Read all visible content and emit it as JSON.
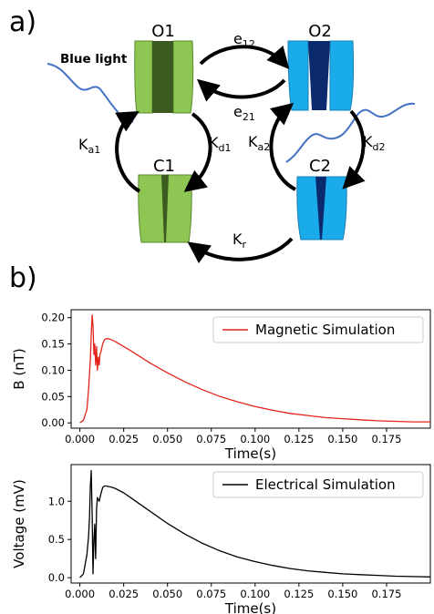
{
  "panel_a": {
    "label": "a)",
    "light_label": "Blue light",
    "states": {
      "o1": "O1",
      "o2": "O2",
      "c1": "C1",
      "c2": "C2"
    },
    "rates": {
      "e12": {
        "main": "e",
        "sub": "12"
      },
      "e21": {
        "main": "e",
        "sub": "21"
      },
      "ka1": {
        "main": "K",
        "sub": "a1"
      },
      "kd1": {
        "main": "K",
        "sub": "d1"
      },
      "ka2": {
        "main": "K",
        "sub": "a2"
      },
      "kd2": {
        "main": "K",
        "sub": "d2"
      },
      "kr": {
        "main": "K",
        "sub": "r"
      }
    },
    "colors": {
      "green_light": "#8dc653",
      "green_dark": "#3a5a1f",
      "blue_light": "#1aabea",
      "blue_dark": "#0b2a6e",
      "light_ray": "#4472c4"
    }
  },
  "panel_b": {
    "label": "b)"
  },
  "chart_data": [
    {
      "type": "line",
      "xlabel": "Time(s)",
      "ylabel": "B (nT)",
      "xlim": [
        -0.005,
        0.2
      ],
      "ylim": [
        -0.01,
        0.215
      ],
      "xticks": [
        "0.000",
        "0.025",
        "0.050",
        "0.075",
        "0.100",
        "0.125",
        "0.150",
        "0.175"
      ],
      "yticks": [
        "0.00",
        "0.05",
        "0.10",
        "0.15",
        "0.20"
      ],
      "legend_position": "top-right",
      "series": [
        {
          "name": "Magnetic Simulation",
          "color": "#e3241b",
          "x": [
            0.0,
            0.002,
            0.004,
            0.005,
            0.006,
            0.0065,
            0.007,
            0.0075,
            0.008,
            0.0085,
            0.009,
            0.0095,
            0.01,
            0.0105,
            0.011,
            0.0115,
            0.012,
            0.013,
            0.014,
            0.015,
            0.016,
            0.018,
            0.02,
            0.025,
            0.03,
            0.04,
            0.05,
            0.06,
            0.07,
            0.08,
            0.09,
            0.1,
            0.11,
            0.12,
            0.13,
            0.14,
            0.15,
            0.16,
            0.17,
            0.18,
            0.19,
            0.2
          ],
          "values": [
            0.0,
            0.005,
            0.025,
            0.065,
            0.12,
            0.17,
            0.205,
            0.185,
            0.13,
            0.15,
            0.11,
            0.145,
            0.1,
            0.125,
            0.11,
            0.13,
            0.135,
            0.15,
            0.158,
            0.16,
            0.16,
            0.158,
            0.155,
            0.145,
            0.135,
            0.114,
            0.095,
            0.078,
            0.063,
            0.05,
            0.04,
            0.031,
            0.024,
            0.018,
            0.014,
            0.01,
            0.008,
            0.006,
            0.004,
            0.003,
            0.002,
            0.002
          ]
        }
      ]
    },
    {
      "type": "line",
      "xlabel": "Time(s)",
      "ylabel": "Voltage (mV)",
      "xlim": [
        -0.005,
        0.2
      ],
      "ylim": [
        -0.07,
        1.48
      ],
      "xticks": [
        "0.000",
        "0.025",
        "0.050",
        "0.075",
        "0.100",
        "0.125",
        "0.150",
        "0.175"
      ],
      "yticks": [
        "0.0",
        "0.5",
        "1.0"
      ],
      "legend_position": "top-right",
      "series": [
        {
          "name": "Electrical Simulation",
          "color": "#000000",
          "x": [
            0.0,
            0.002,
            0.004,
            0.005,
            0.0055,
            0.006,
            0.0065,
            0.007,
            0.0075,
            0.008,
            0.0085,
            0.009,
            0.0095,
            0.01,
            0.011,
            0.012,
            0.013,
            0.014,
            0.015,
            0.016,
            0.018,
            0.02,
            0.025,
            0.03,
            0.04,
            0.05,
            0.06,
            0.07,
            0.08,
            0.09,
            0.1,
            0.11,
            0.12,
            0.13,
            0.14,
            0.15,
            0.16,
            0.17,
            0.18,
            0.19,
            0.2
          ],
          "values": [
            0.0,
            0.05,
            0.3,
            0.55,
            0.8,
            1.2,
            1.4,
            0.8,
            0.05,
            0.5,
            0.7,
            0.25,
            0.9,
            1.05,
            1.0,
            1.1,
            1.18,
            1.2,
            1.2,
            1.195,
            1.185,
            1.17,
            1.11,
            1.03,
            0.87,
            0.71,
            0.57,
            0.45,
            0.35,
            0.27,
            0.21,
            0.16,
            0.12,
            0.09,
            0.07,
            0.05,
            0.04,
            0.03,
            0.02,
            0.015,
            0.01
          ]
        }
      ]
    }
  ]
}
